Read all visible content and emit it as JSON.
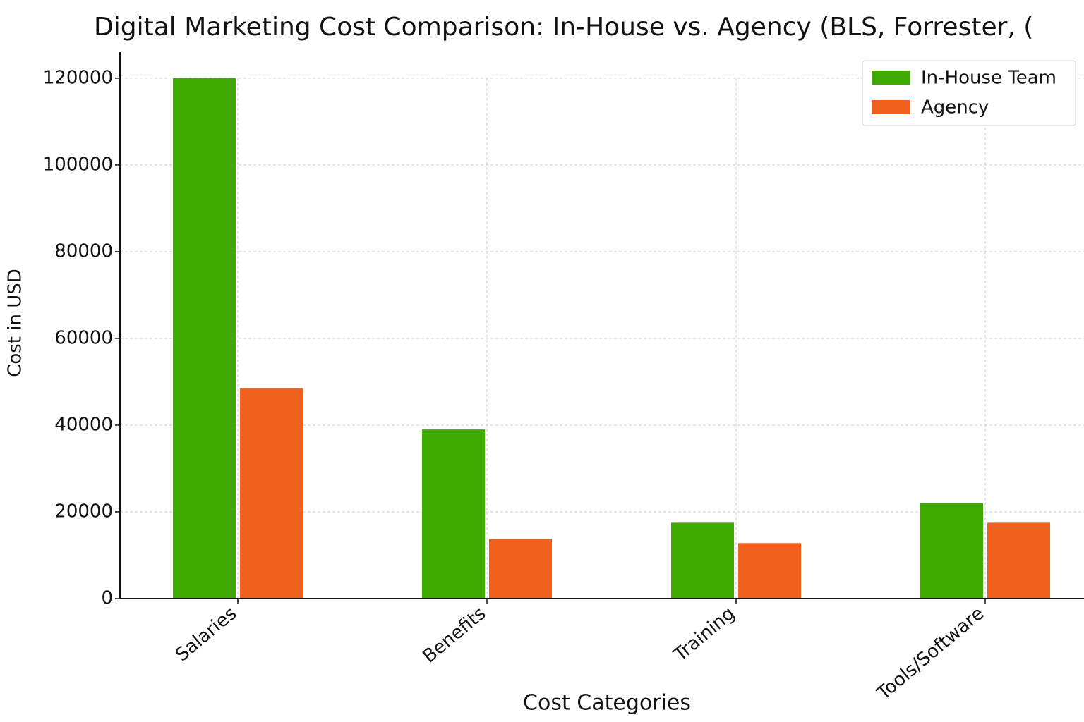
{
  "chart_data": {
    "type": "bar",
    "title": "Digital Marketing Cost Comparison: In-House vs. Agency (BLS, Forrester, (",
    "x_label": "Cost Categories",
    "y_label": "Cost in USD",
    "categories": [
      "Salaries",
      "Benefits",
      "Training",
      "Tools/Software"
    ],
    "series": [
      {
        "name": "In-House Team",
        "color": "#3fab00",
        "values": [
          120000,
          39000,
          17500,
          22000
        ]
      },
      {
        "name": "Agency",
        "color": "#f2601e",
        "values": [
          48500,
          13700,
          12800,
          17500
        ]
      }
    ],
    "ylim": [
      0,
      126000
    ],
    "yticks": [
      0,
      20000,
      40000,
      60000,
      80000,
      100000,
      120000
    ],
    "grid": true,
    "legend": "upper right"
  }
}
